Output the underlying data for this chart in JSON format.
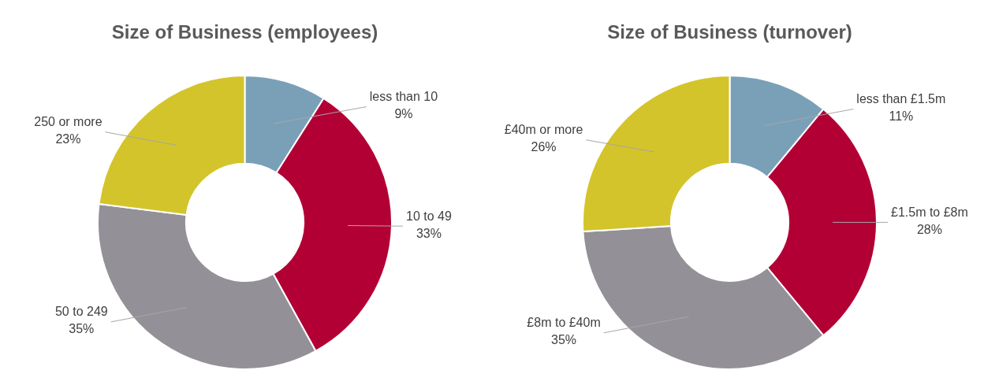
{
  "chart_data": [
    {
      "type": "donut",
      "title": "Size of Business (employees)",
      "categories": [
        "less than 10",
        "10 to 49",
        "50 to 249",
        "250 or more"
      ],
      "values": [
        9,
        33,
        35,
        23
      ],
      "value_labels": [
        "9%",
        "33%",
        "35%",
        "23%"
      ],
      "colors": [
        "#7aa0b8",
        "#b20035",
        "#939197",
        "#d4c42b"
      ]
    },
    {
      "type": "donut",
      "title": "Size of Business (turnover)",
      "categories": [
        "less than £1.5m",
        "£1.5m to £8m",
        "£8m to £40m",
        "£40m or more"
      ],
      "values": [
        11,
        28,
        35,
        26
      ],
      "value_labels": [
        "11%",
        "28%",
        "35%",
        "26%"
      ],
      "colors": [
        "#7aa0b8",
        "#b20035",
        "#939197",
        "#d4c42b"
      ]
    }
  ]
}
